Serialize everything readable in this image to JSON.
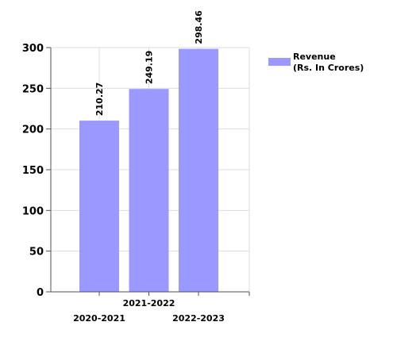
{
  "chart_data": {
    "type": "bar",
    "categories": [
      "2020-2021",
      "2021-2022",
      "2022-2023"
    ],
    "series": [
      {
        "name": "Revenue (Rs. In Crores)",
        "name_lines": [
          "Revenue",
          "(Rs. In Crores)"
        ],
        "values": [
          210.27,
          249.19,
          298.46
        ],
        "value_labels": [
          "210.27",
          "249.19",
          "298.46"
        ],
        "color": "#9999ff"
      }
    ],
    "yticks": [
      0,
      50,
      100,
      150,
      200,
      250,
      300
    ],
    "ylim": [
      0,
      300
    ],
    "grid": true,
    "legend": "top-right",
    "category_labels_staggered": true
  }
}
